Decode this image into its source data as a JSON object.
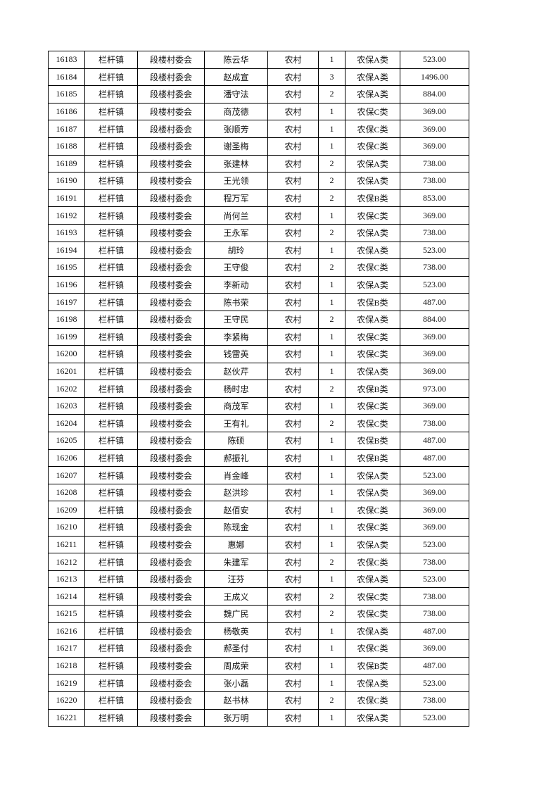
{
  "columns": [
    "id",
    "town",
    "village",
    "name",
    "household_type",
    "persons",
    "category",
    "amount"
  ],
  "rows": [
    [
      "16183",
      "栏杆镇",
      "段楼村委会",
      "陈云华",
      "农村",
      "1",
      "农保A类",
      "523.00"
    ],
    [
      "16184",
      "栏杆镇",
      "段楼村委会",
      "赵成宣",
      "农村",
      "3",
      "农保A类",
      "1496.00"
    ],
    [
      "16185",
      "栏杆镇",
      "段楼村委会",
      "潘守法",
      "农村",
      "2",
      "农保A类",
      "884.00"
    ],
    [
      "16186",
      "栏杆镇",
      "段楼村委会",
      "商茂德",
      "农村",
      "1",
      "农保C类",
      "369.00"
    ],
    [
      "16187",
      "栏杆镇",
      "段楼村委会",
      "张顺芳",
      "农村",
      "1",
      "农保C类",
      "369.00"
    ],
    [
      "16188",
      "栏杆镇",
      "段楼村委会",
      "谢圣梅",
      "农村",
      "1",
      "农保C类",
      "369.00"
    ],
    [
      "16189",
      "栏杆镇",
      "段楼村委会",
      "张建林",
      "农村",
      "2",
      "农保A类",
      "738.00"
    ],
    [
      "16190",
      "栏杆镇",
      "段楼村委会",
      "王光领",
      "农村",
      "2",
      "农保A类",
      "738.00"
    ],
    [
      "16191",
      "栏杆镇",
      "段楼村委会",
      "程万军",
      "农村",
      "2",
      "农保B类",
      "853.00"
    ],
    [
      "16192",
      "栏杆镇",
      "段楼村委会",
      "尚何兰",
      "农村",
      "1",
      "农保C类",
      "369.00"
    ],
    [
      "16193",
      "栏杆镇",
      "段楼村委会",
      "王永军",
      "农村",
      "2",
      "农保A类",
      "738.00"
    ],
    [
      "16194",
      "栏杆镇",
      "段楼村委会",
      "胡玲",
      "农村",
      "1",
      "农保A类",
      "523.00"
    ],
    [
      "16195",
      "栏杆镇",
      "段楼村委会",
      "王守俊",
      "农村",
      "2",
      "农保C类",
      "738.00"
    ],
    [
      "16196",
      "栏杆镇",
      "段楼村委会",
      "李新动",
      "农村",
      "1",
      "农保A类",
      "523.00"
    ],
    [
      "16197",
      "栏杆镇",
      "段楼村委会",
      "陈书荣",
      "农村",
      "1",
      "农保B类",
      "487.00"
    ],
    [
      "16198",
      "栏杆镇",
      "段楼村委会",
      "王守民",
      "农村",
      "2",
      "农保A类",
      "884.00"
    ],
    [
      "16199",
      "栏杆镇",
      "段楼村委会",
      "李紧梅",
      "农村",
      "1",
      "农保C类",
      "369.00"
    ],
    [
      "16200",
      "栏杆镇",
      "段楼村委会",
      "钱雷英",
      "农村",
      "1",
      "农保C类",
      "369.00"
    ],
    [
      "16201",
      "栏杆镇",
      "段楼村委会",
      "赵伙芹",
      "农村",
      "1",
      "农保A类",
      "369.00"
    ],
    [
      "16202",
      "栏杆镇",
      "段楼村委会",
      "杨时忠",
      "农村",
      "2",
      "农保B类",
      "973.00"
    ],
    [
      "16203",
      "栏杆镇",
      "段楼村委会",
      "商茂军",
      "农村",
      "1",
      "农保C类",
      "369.00"
    ],
    [
      "16204",
      "栏杆镇",
      "段楼村委会",
      "王有礼",
      "农村",
      "2",
      "农保C类",
      "738.00"
    ],
    [
      "16205",
      "栏杆镇",
      "段楼村委会",
      "陈硕",
      "农村",
      "1",
      "农保B类",
      "487.00"
    ],
    [
      "16206",
      "栏杆镇",
      "段楼村委会",
      "郝振礼",
      "农村",
      "1",
      "农保B类",
      "487.00"
    ],
    [
      "16207",
      "栏杆镇",
      "段楼村委会",
      "肖金峰",
      "农村",
      "1",
      "农保A类",
      "523.00"
    ],
    [
      "16208",
      "栏杆镇",
      "段楼村委会",
      "赵洪珍",
      "农村",
      "1",
      "农保A类",
      "369.00"
    ],
    [
      "16209",
      "栏杆镇",
      "段楼村委会",
      "赵佰安",
      "农村",
      "1",
      "农保C类",
      "369.00"
    ],
    [
      "16210",
      "栏杆镇",
      "段楼村委会",
      "陈现金",
      "农村",
      "1",
      "农保C类",
      "369.00"
    ],
    [
      "16211",
      "栏杆镇",
      "段楼村委会",
      "惠娜",
      "农村",
      "1",
      "农保A类",
      "523.00"
    ],
    [
      "16212",
      "栏杆镇",
      "段楼村委会",
      "朱建军",
      "农村",
      "2",
      "农保C类",
      "738.00"
    ],
    [
      "16213",
      "栏杆镇",
      "段楼村委会",
      "汪芬",
      "农村",
      "1",
      "农保A类",
      "523.00"
    ],
    [
      "16214",
      "栏杆镇",
      "段楼村委会",
      "王成义",
      "农村",
      "2",
      "农保C类",
      "738.00"
    ],
    [
      "16215",
      "栏杆镇",
      "段楼村委会",
      "魏广民",
      "农村",
      "2",
      "农保C类",
      "738.00"
    ],
    [
      "16216",
      "栏杆镇",
      "段楼村委会",
      "杨敬英",
      "农村",
      "1",
      "农保A类",
      "487.00"
    ],
    [
      "16217",
      "栏杆镇",
      "段楼村委会",
      "郝圣付",
      "农村",
      "1",
      "农保C类",
      "369.00"
    ],
    [
      "16218",
      "栏杆镇",
      "段楼村委会",
      "周成荣",
      "农村",
      "1",
      "农保B类",
      "487.00"
    ],
    [
      "16219",
      "栏杆镇",
      "段楼村委会",
      "张小磊",
      "农村",
      "1",
      "农保A类",
      "523.00"
    ],
    [
      "16220",
      "栏杆镇",
      "段楼村委会",
      "赵书林",
      "农村",
      "2",
      "农保C类",
      "738.00"
    ],
    [
      "16221",
      "栏杆镇",
      "段楼村委会",
      "张万明",
      "农村",
      "1",
      "农保A类",
      "523.00"
    ]
  ]
}
